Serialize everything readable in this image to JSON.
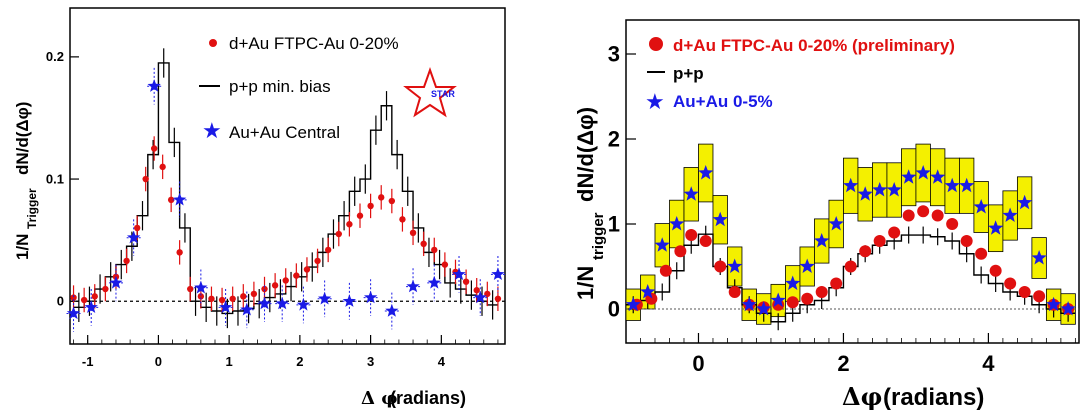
{
  "chart_data": [
    {
      "type": "scatter",
      "xlabel_symbol": "Δ φ",
      "xlabel": "(radians)",
      "ylabel": "1/N",
      "ylabel_sub": "Trigger",
      "ylabel_rest": "dN/d(Δφ)",
      "xlim": [
        -1.25,
        4.9
      ],
      "ylim": [
        -0.035,
        0.24
      ],
      "x_ticks": [
        -1,
        0,
        1,
        2,
        3,
        4
      ],
      "y_ticks": [
        0,
        0.1,
        0.2
      ],
      "y_tick_labels": [
        "0",
        "0.1",
        "0.2"
      ],
      "legend_position": "top-right",
      "logo_text": "STAR",
      "series": [
        {
          "name": "d+Au FTPC-Au 0-20%",
          "color": "#e01010",
          "marker": "circle",
          "x": [
            -1.2,
            -1.05,
            -0.9,
            -0.75,
            -0.6,
            -0.45,
            -0.3,
            -0.18,
            -0.06,
            0.06,
            0.18,
            0.3,
            0.45,
            0.6,
            0.75,
            0.9,
            1.05,
            1.2,
            1.35,
            1.5,
            1.65,
            1.8,
            1.95,
            2.1,
            2.25,
            2.4,
            2.55,
            2.7,
            2.85,
            3.0,
            3.15,
            3.3,
            3.45,
            3.6,
            3.75,
            3.9,
            4.05,
            4.2,
            4.35,
            4.5,
            4.65,
            4.8
          ],
          "y": [
            0.003,
            0.001,
            0.004,
            0.01,
            0.02,
            0.033,
            0.06,
            0.1,
            0.125,
            0.11,
            0.083,
            0.04,
            0.01,
            0.004,
            0.002,
            0.001,
            0.002,
            0.004,
            0.006,
            0.01,
            0.013,
            0.017,
            0.021,
            0.026,
            0.033,
            0.042,
            0.055,
            0.063,
            0.07,
            0.078,
            0.085,
            0.082,
            0.067,
            0.056,
            0.047,
            0.042,
            0.03,
            0.024,
            0.016,
            0.009,
            0.006,
            0.002
          ]
        },
        {
          "name": "p+p min. bias",
          "color": "#000000",
          "marker": "histogram",
          "bin_edges": [
            -1.2,
            -1.05,
            -0.9,
            -0.75,
            -0.6,
            -0.45,
            -0.3,
            -0.15,
            0.0,
            0.15,
            0.3,
            0.45,
            0.6,
            0.75,
            0.9,
            1.05,
            1.2,
            1.35,
            1.5,
            1.65,
            1.8,
            1.95,
            2.1,
            2.25,
            2.4,
            2.55,
            2.7,
            2.85,
            3.0,
            3.15,
            3.3,
            3.45,
            3.6,
            3.75,
            3.9,
            4.05,
            4.2,
            4.35,
            4.5,
            4.65,
            4.8
          ],
          "values": [
            -0.005,
            0.0,
            0.01,
            0.02,
            0.03,
            0.045,
            0.07,
            0.12,
            0.195,
            0.13,
            0.06,
            0.0,
            -0.005,
            -0.008,
            -0.01,
            -0.008,
            -0.006,
            -0.002,
            0.003,
            0.006,
            0.012,
            0.02,
            0.028,
            0.04,
            0.055,
            0.07,
            0.09,
            0.1,
            0.14,
            0.16,
            0.12,
            0.09,
            0.06,
            0.04,
            0.03,
            0.015,
            0.01,
            0.005,
            0.0,
            -0.003
          ]
        },
        {
          "name": "Au+Au Central",
          "color": "#1a1ae6",
          "marker": "star",
          "x": [
            -1.2,
            -0.95,
            -0.6,
            -0.35,
            -0.06,
            0.3,
            0.6,
            0.95,
            1.25,
            1.5,
            1.75,
            2.05,
            2.35,
            2.7,
            3.0,
            3.3,
            3.6,
            3.9,
            4.25,
            4.55,
            4.8
          ],
          "y": [
            -0.01,
            -0.005,
            0.015,
            0.052,
            0.176,
            0.083,
            0.011,
            -0.005,
            -0.007,
            -0.002,
            -0.002,
            -0.003,
            0.002,
            0.0,
            0.003,
            -0.008,
            0.012,
            0.015,
            0.022,
            0.003,
            0.022
          ]
        }
      ]
    },
    {
      "type": "scatter",
      "xlabel_symbol": "Δφ",
      "xlabel": "(radians)",
      "ylabel": "1/N",
      "ylabel_sub": "trigger",
      "ylabel_rest": "dN/d(Δφ)",
      "xlim": [
        -1.0,
        5.25
      ],
      "ylim": [
        -0.4,
        3.4
      ],
      "x_ticks": [
        0,
        2,
        4
      ],
      "y_ticks": [
        0,
        1,
        2,
        3
      ],
      "y_tick_labels": [
        "0",
        "1",
        "2",
        "3"
      ],
      "legend_position": "top-left",
      "series": [
        {
          "name": "d+Au FTPC-Au 0-20% (preliminary)",
          "color": "#e01010",
          "marker": "circle",
          "x": [
            -0.85,
            -0.65,
            -0.45,
            -0.25,
            -0.1,
            0.1,
            0.3,
            0.5,
            0.7,
            0.9,
            1.1,
            1.3,
            1.5,
            1.7,
            1.9,
            2.1,
            2.3,
            2.5,
            2.7,
            2.9,
            3.1,
            3.3,
            3.5,
            3.7,
            3.9,
            4.1,
            4.3,
            4.5,
            4.7,
            4.9,
            5.1
          ],
          "y": [
            0.05,
            0.12,
            0.45,
            0.68,
            0.87,
            0.8,
            0.5,
            0.2,
            0.05,
            0.02,
            0.05,
            0.08,
            0.12,
            0.2,
            0.3,
            0.5,
            0.68,
            0.8,
            0.9,
            1.1,
            1.15,
            1.1,
            1.0,
            0.8,
            0.65,
            0.45,
            0.3,
            0.2,
            0.15,
            0.05,
            0.0
          ]
        },
        {
          "name": "p+p",
          "color": "#000000",
          "marker": "histogram",
          "bin_edges": [
            -1.0,
            -0.8,
            -0.6,
            -0.4,
            -0.2,
            0.0,
            0.2,
            0.4,
            0.6,
            0.8,
            1.0,
            1.2,
            1.4,
            1.6,
            1.8,
            2.0,
            2.2,
            2.4,
            2.6,
            2.8,
            3.0,
            3.2,
            3.4,
            3.6,
            3.8,
            4.0,
            4.2,
            4.4,
            4.6,
            4.8,
            5.0,
            5.2
          ],
          "values": [
            0.05,
            0.1,
            0.2,
            0.45,
            0.75,
            0.88,
            0.5,
            0.25,
            0.05,
            -0.05,
            -0.15,
            -0.05,
            0.05,
            0.1,
            0.25,
            0.5,
            0.65,
            0.75,
            0.8,
            0.87,
            0.87,
            0.85,
            0.8,
            0.65,
            0.4,
            0.3,
            0.2,
            0.15,
            0.05,
            0.0,
            -0.05
          ]
        },
        {
          "name": "Au+Au 0-5%",
          "color": "#1a1ae6",
          "marker": "star",
          "x": [
            -0.9,
            -0.7,
            -0.5,
            -0.3,
            -0.1,
            0.1,
            0.3,
            0.5,
            0.7,
            0.9,
            1.1,
            1.3,
            1.5,
            1.7,
            1.9,
            2.1,
            2.3,
            2.5,
            2.7,
            2.9,
            3.1,
            3.3,
            3.5,
            3.7,
            3.9,
            4.1,
            4.3,
            4.5,
            4.7,
            4.9,
            5.1
          ],
          "y": [
            0.05,
            0.2,
            0.75,
            1.0,
            1.35,
            1.6,
            1.05,
            0.5,
            0.05,
            0.0,
            0.1,
            0.3,
            0.5,
            0.8,
            1.0,
            1.45,
            1.35,
            1.4,
            1.4,
            1.55,
            1.6,
            1.55,
            1.45,
            1.45,
            1.2,
            0.95,
            1.1,
            1.25,
            0.6,
            0.05,
            0.0
          ]
        }
      ]
    }
  ]
}
